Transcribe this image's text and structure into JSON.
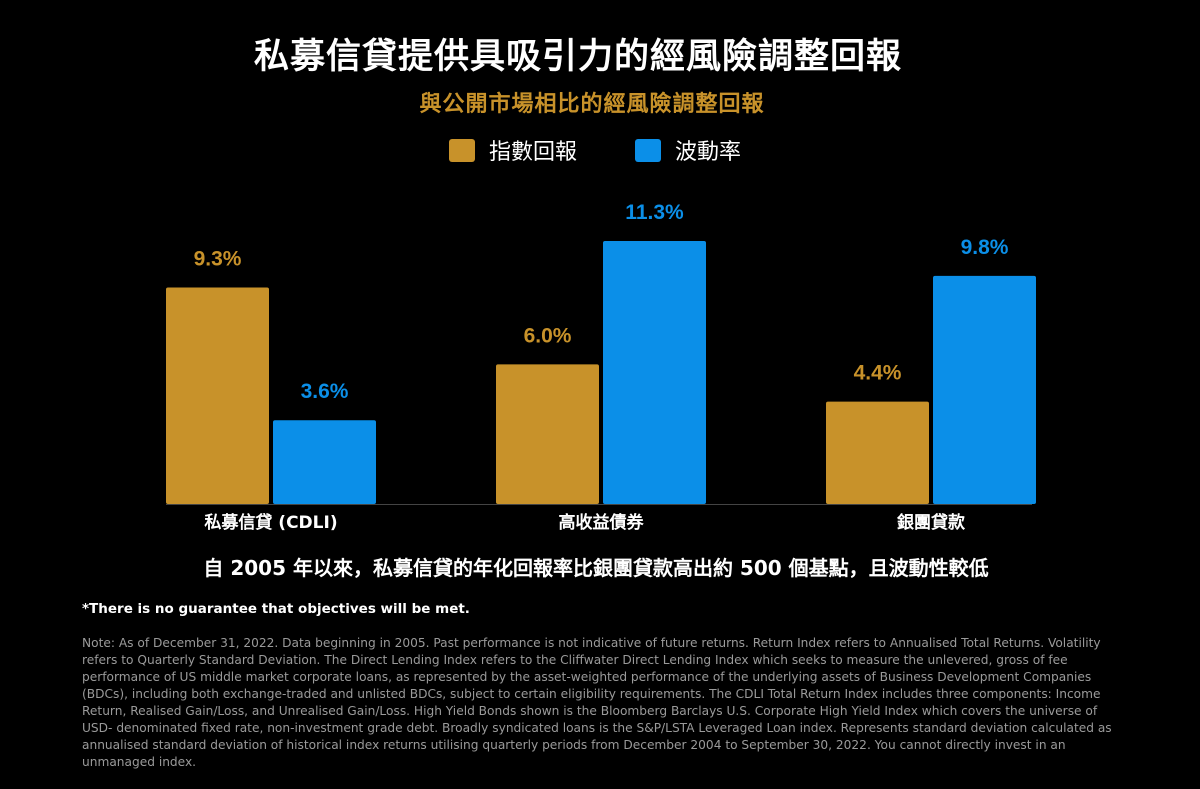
{
  "title": "私募信貸提供具吸引力的經風險調整回報",
  "subtitle": "與公開市場相比的經風險調整回報",
  "legend": [
    {
      "label": "指數回報",
      "color": "#c8922a"
    },
    {
      "label": "波動率",
      "color": "#0b8fe8"
    }
  ],
  "chart_data": {
    "type": "bar",
    "categories": [
      "私募信貸 (CDLI)",
      "高收益債券",
      "銀團貸款"
    ],
    "series": [
      {
        "name": "指數回報",
        "values": [
          9.3,
          6.0,
          4.4
        ],
        "labels": [
          "9.3%",
          "6.0%",
          "4.4%"
        ],
        "color": "#c8922a"
      },
      {
        "name": "波動率",
        "values": [
          3.6,
          11.3,
          9.8
        ],
        "labels": [
          "3.6%",
          "11.3%",
          "9.8%"
        ],
        "color": "#0b8fe8"
      }
    ],
    "ylim": [
      0,
      11.3
    ],
    "grid": false,
    "legend_position": "top-center",
    "label_color": "#c7c7c7"
  },
  "headline": "自 2005 年以來，私募信貸的年化回報率比銀團貸款高出約 500 個基點，且波動性較低",
  "disclaimer": "*There is no guarantee that objectives will be met.",
  "note": "Note: As of December 31, 2022. Data beginning in 2005. Past performance is not indicative of future returns. Return Index refers to Annualised Total Returns. Volatility refers to Quarterly Standard Deviation. The Direct Lending Index refers to the Cliffwater Direct Lending Index which seeks to measure the unlevered, gross of fee performance of US middle market corporate loans, as represented by the asset-weighted performance of the underlying assets of Business Development Companies (BDCs), including both exchange-traded and unlisted BDCs, subject to certain eligibility requirements. The CDLI Total Return Index includes three components: Income Return, Realised Gain/Loss, and Unrealised Gain/Loss. High Yield Bonds shown is the Bloomberg Barclays U.S. Corporate High Yield Index which covers the universe of USD- denominated fixed rate, non-investment grade debt. Broadly syndicated loans is the S&P/LSTA Leveraged Loan index. Represents standard deviation calculated as annualised standard deviation of historical index returns utilising quarterly periods from December 2004 to September 30, 2022. You cannot directly invest in an unmanaged index."
}
